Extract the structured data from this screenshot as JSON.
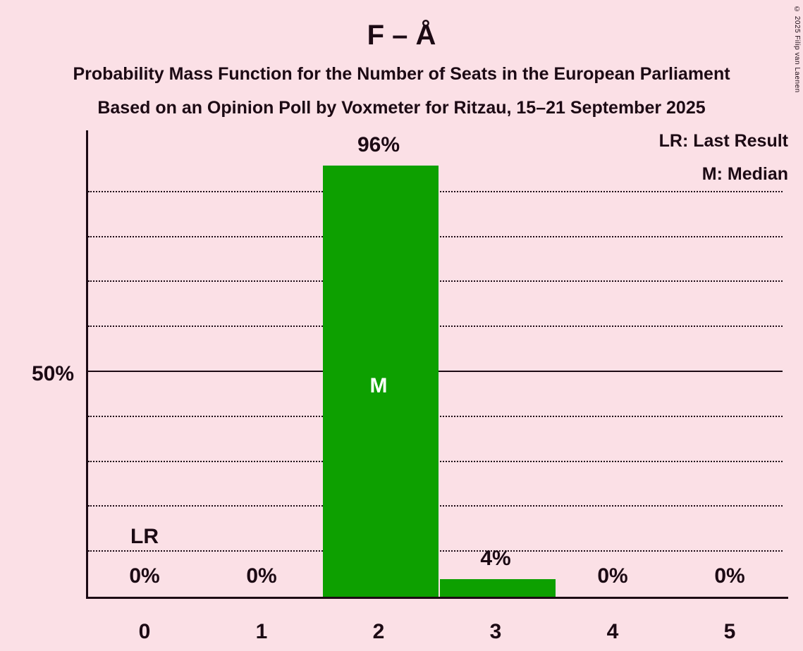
{
  "title": "F – Å",
  "subtitle1": "Probability Mass Function for the Number of Seats in the European Parliament",
  "subtitle2": "Based on an Opinion Poll by Voxmeter for Ritzau, 15–21 September 2025",
  "legend": {
    "lr": "LR: Last Result",
    "m": "M: Median"
  },
  "y_axis": {
    "label_50": "50%"
  },
  "copyright": "© 2025 Filip van Laenen",
  "chart_data": {
    "type": "bar",
    "categories": [
      "0",
      "1",
      "2",
      "3",
      "4",
      "5"
    ],
    "values": [
      0,
      0,
      96,
      4,
      0,
      0
    ],
    "value_labels": [
      "0%",
      "0%",
      "96%",
      "4%",
      "0%",
      "0%"
    ],
    "title": "F – Å",
    "xlabel": "",
    "ylabel": "",
    "ylim": [
      0,
      100
    ],
    "gridlines_pct": [
      10,
      20,
      30,
      40,
      60,
      70,
      80,
      90
    ],
    "solid_line_pct": 50,
    "grid_style": "dotted",
    "legend_position": "top-right",
    "median_category": "2",
    "last_result_category": "0",
    "annotations": {
      "median_marker": "M",
      "last_result_marker": "LR"
    },
    "bar_color": "#0da000",
    "background_color": "#fbe0e6",
    "text_color": "#1c0a14",
    "median_label_color": "#ffffff"
  }
}
